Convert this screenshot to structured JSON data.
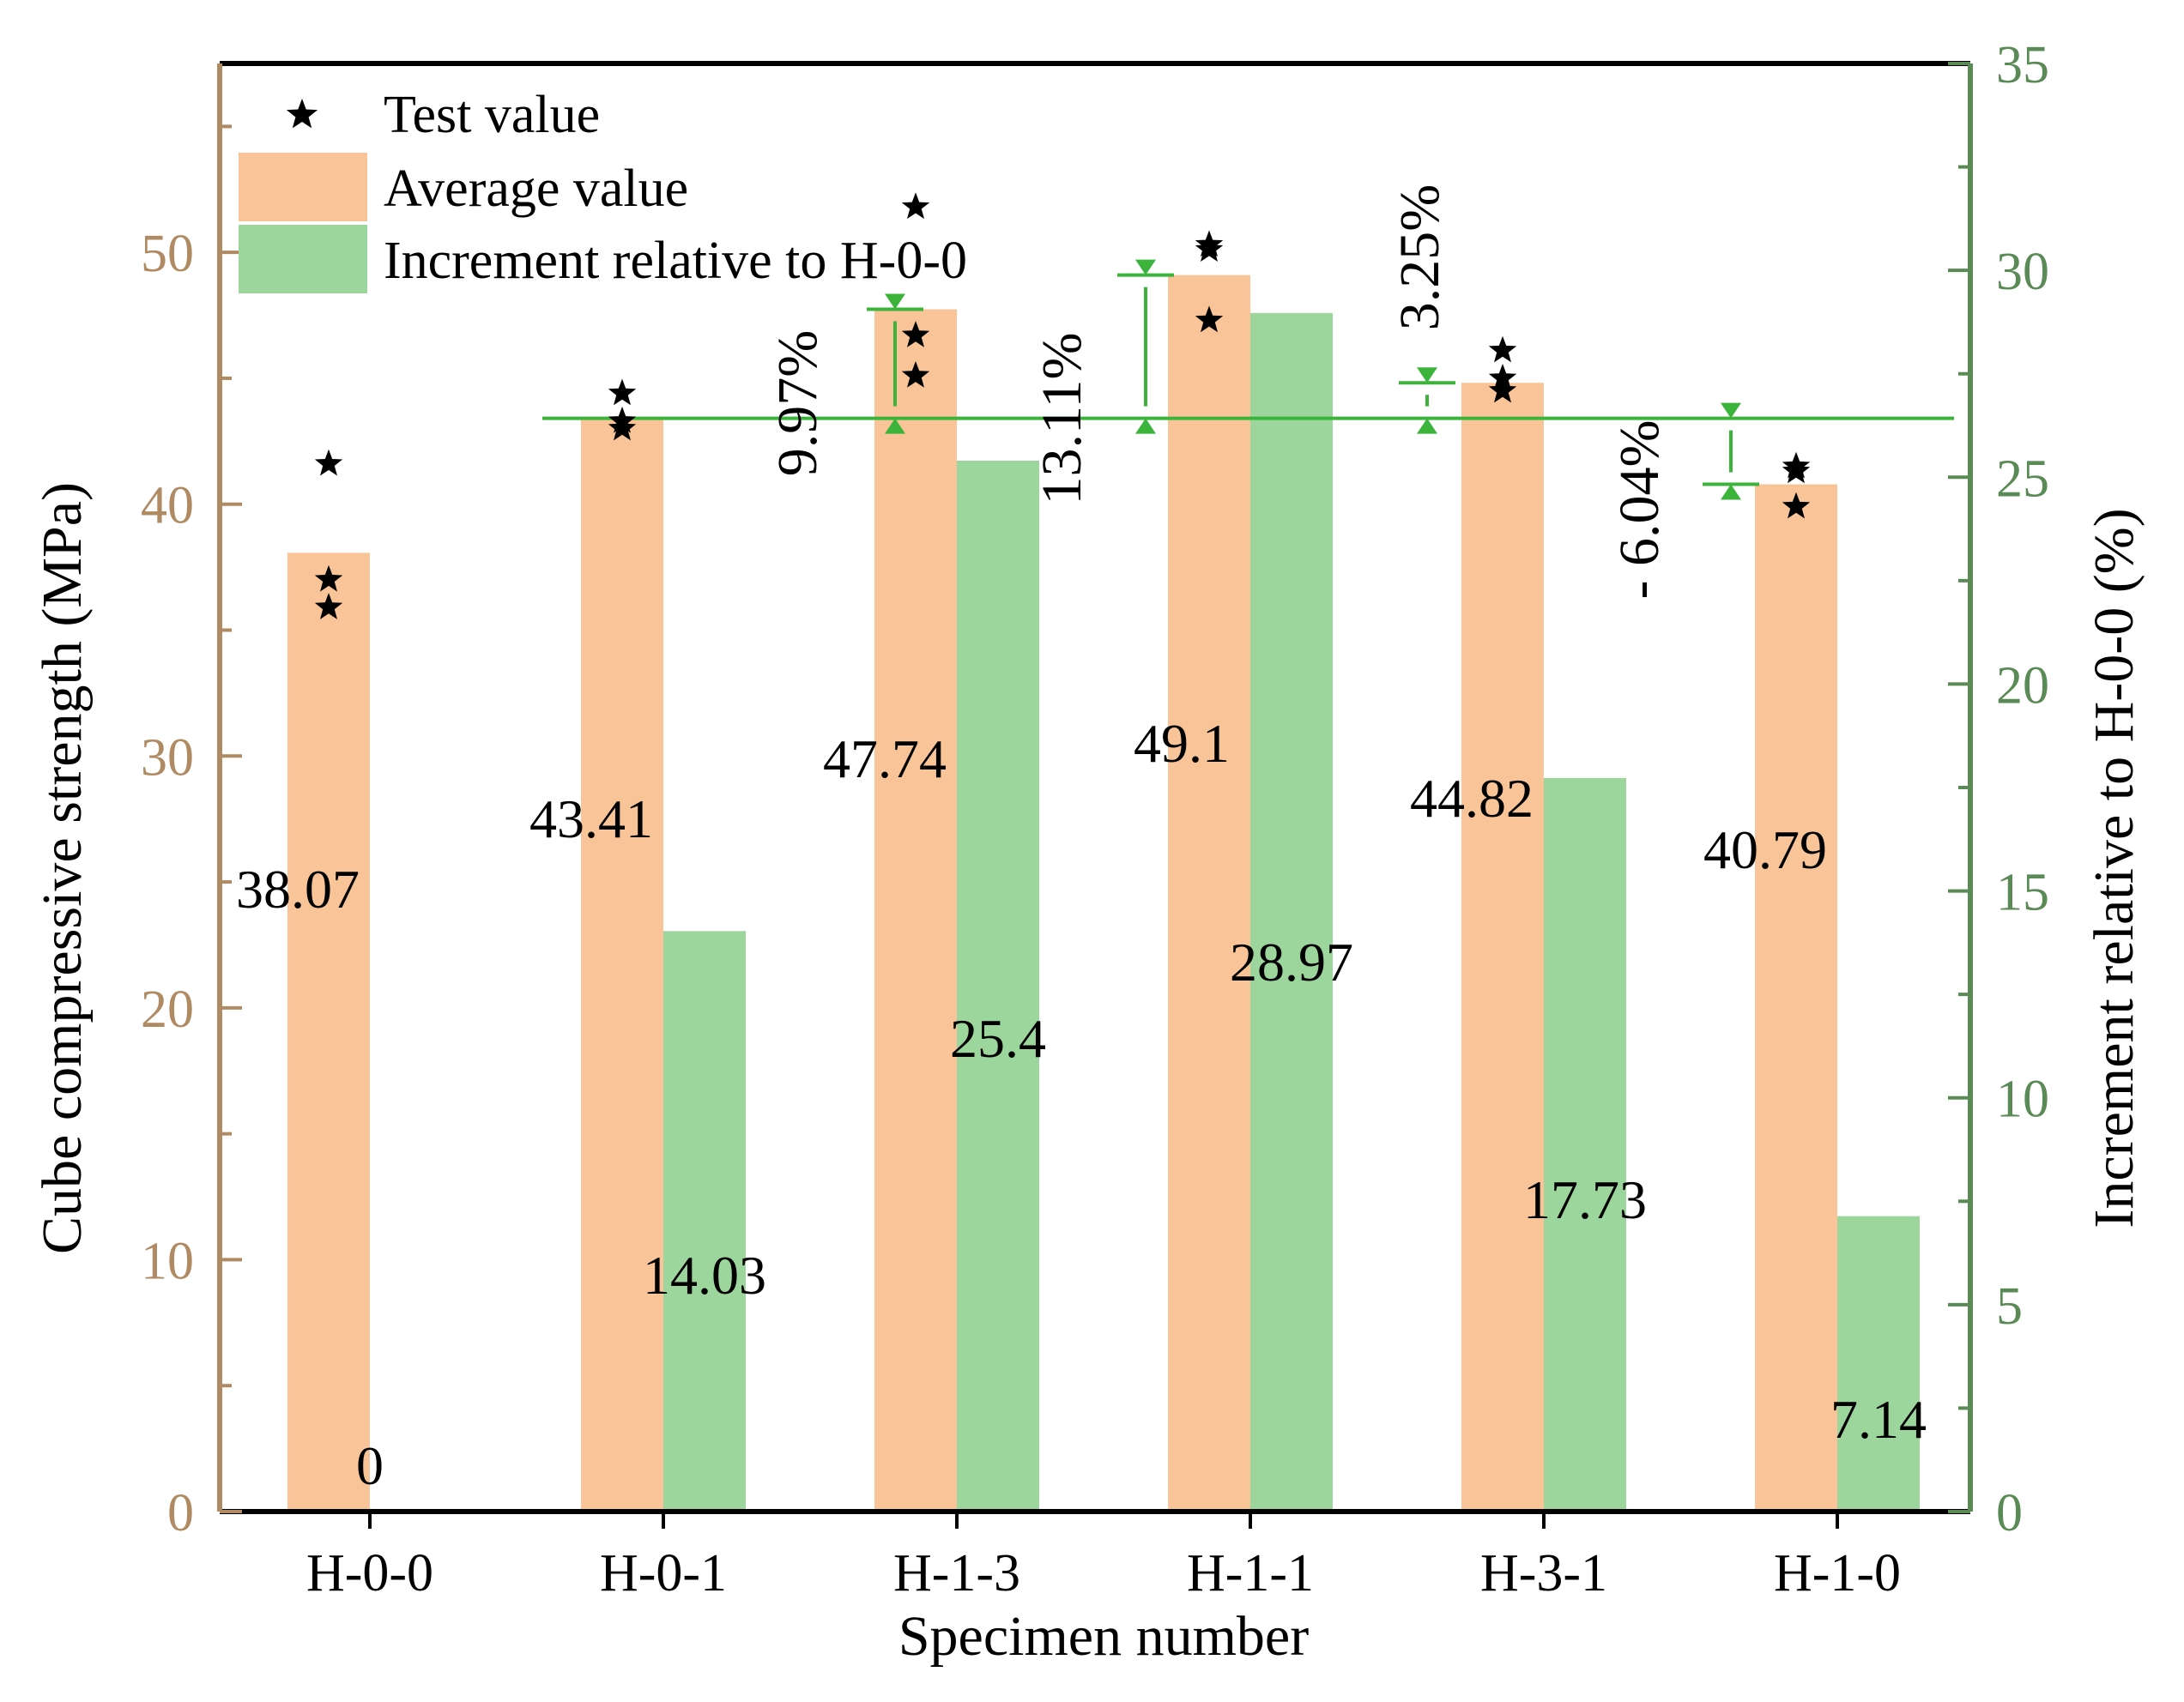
{
  "chart_data": {
    "type": "bar",
    "xlabel": "Specimen number",
    "ylabel_left": "Cube compressive strength (MPa)",
    "ylabel_right": "Increment relative to H-0-0 (%)",
    "ylim_left": [
      0,
      57.5
    ],
    "ylim_right": [
      0,
      35
    ],
    "yticks_left": [
      0,
      10,
      20,
      30,
      40,
      50
    ],
    "yticks_right": [
      0,
      5,
      10,
      15,
      20,
      25,
      30,
      35
    ],
    "categories": [
      "H-0-0",
      "H-0-1",
      "H-1-3",
      "H-1-1",
      "H-3-1",
      "H-1-0"
    ],
    "series": [
      {
        "name": "Average value",
        "axis": "left",
        "color": "#f9c598",
        "values": [
          38.07,
          43.41,
          47.74,
          49.1,
          44.82,
          40.79
        ],
        "labels": [
          "38.07",
          "43.41",
          "47.74",
          "49.1",
          "44.82",
          "40.79"
        ]
      },
      {
        "name": "Increment relative to H-0-0",
        "axis": "right",
        "color": "#9dd69c",
        "values": [
          0,
          14.03,
          25.4,
          28.97,
          17.73,
          7.14
        ],
        "labels": [
          "0",
          "14.03",
          "25.4",
          "28.97",
          "17.73",
          "7.14"
        ]
      },
      {
        "name": "Test value",
        "axis": "left",
        "marker": "star",
        "color": "#000000",
        "points": [
          [
            41.6,
            37.0,
            35.9
          ],
          [
            44.4,
            43.3,
            43.0
          ],
          [
            51.8,
            46.7,
            45.1
          ],
          [
            50.3,
            50.1,
            47.3
          ],
          [
            46.1,
            45.0,
            44.5
          ],
          [
            41.5,
            41.3,
            39.9
          ]
        ]
      }
    ],
    "reference": {
      "value": 43.41,
      "axis": "left",
      "color": "#3cb43c",
      "annotations": [
        {
          "category": "H-1-3",
          "target": 47.74,
          "label": "9.97%"
        },
        {
          "category": "H-1-1",
          "target": 49.1,
          "label": "13.11%"
        },
        {
          "category": "H-3-1",
          "target": 44.82,
          "label": "3.25%"
        },
        {
          "category": "H-1-0",
          "target": 40.79,
          "label": "- 6.04%"
        }
      ]
    },
    "legend": {
      "position": "top-left",
      "entries": [
        "Test value",
        "Average value",
        "Increment relative to H-0-0"
      ]
    },
    "colors": {
      "left_axis": "#b08a62",
      "right_axis": "#5a8a55"
    }
  }
}
